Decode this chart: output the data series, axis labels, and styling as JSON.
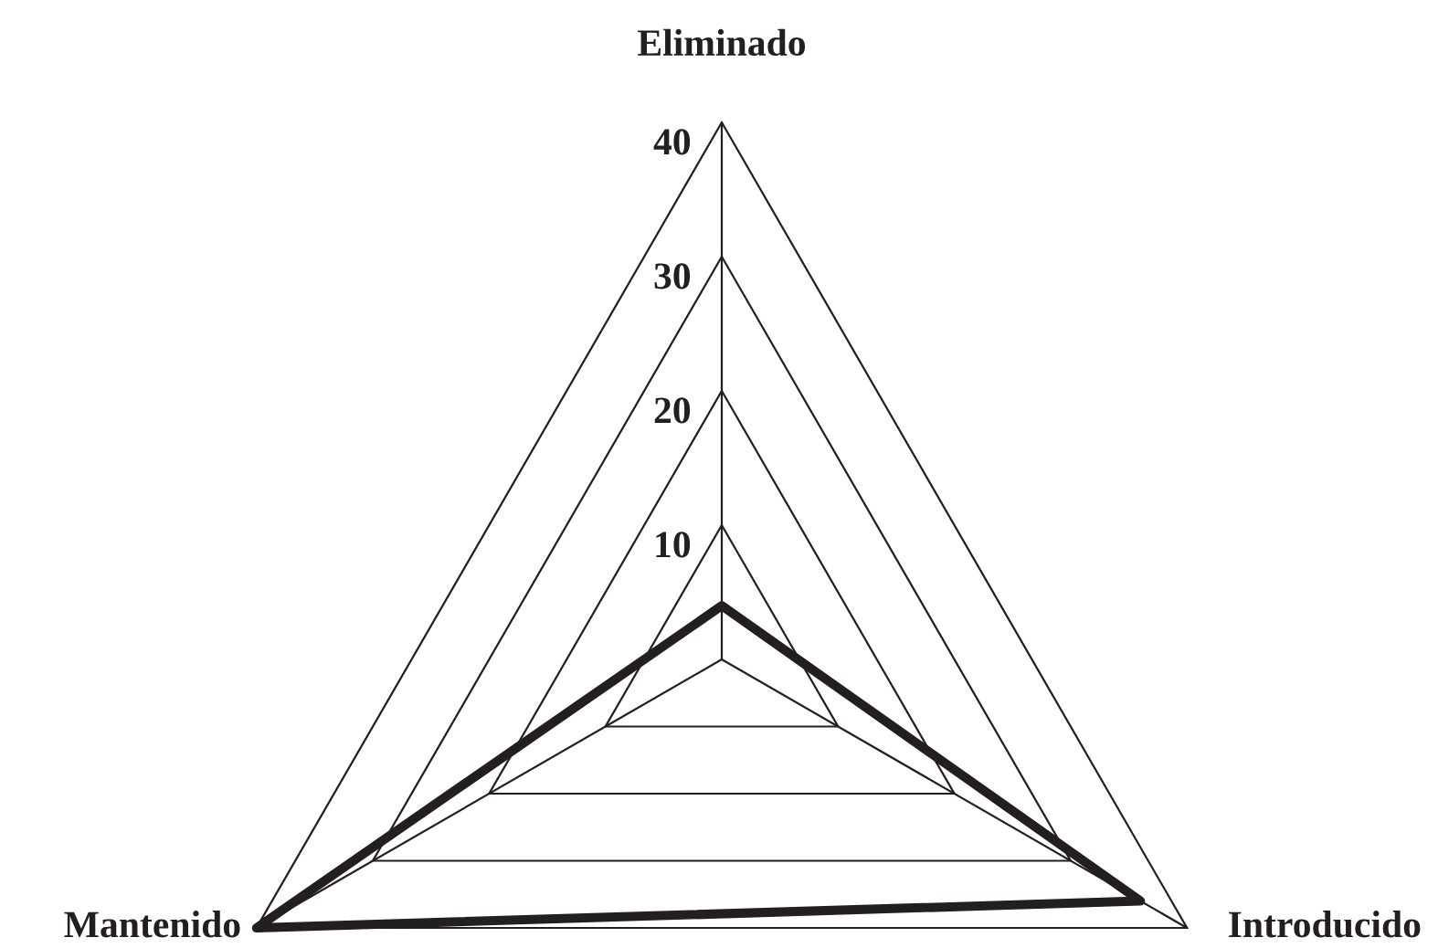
{
  "chart_data": {
    "type": "radar",
    "categories": [
      "Eliminado",
      "Introducido",
      "Mantenido"
    ],
    "series": [
      {
        "color": "#231f20",
        "values": [
          4,
          36,
          40
        ]
      }
    ],
    "ylim": [
      0,
      40
    ],
    "yticks": [
      10,
      20,
      30,
      40
    ],
    "grid": true
  }
}
